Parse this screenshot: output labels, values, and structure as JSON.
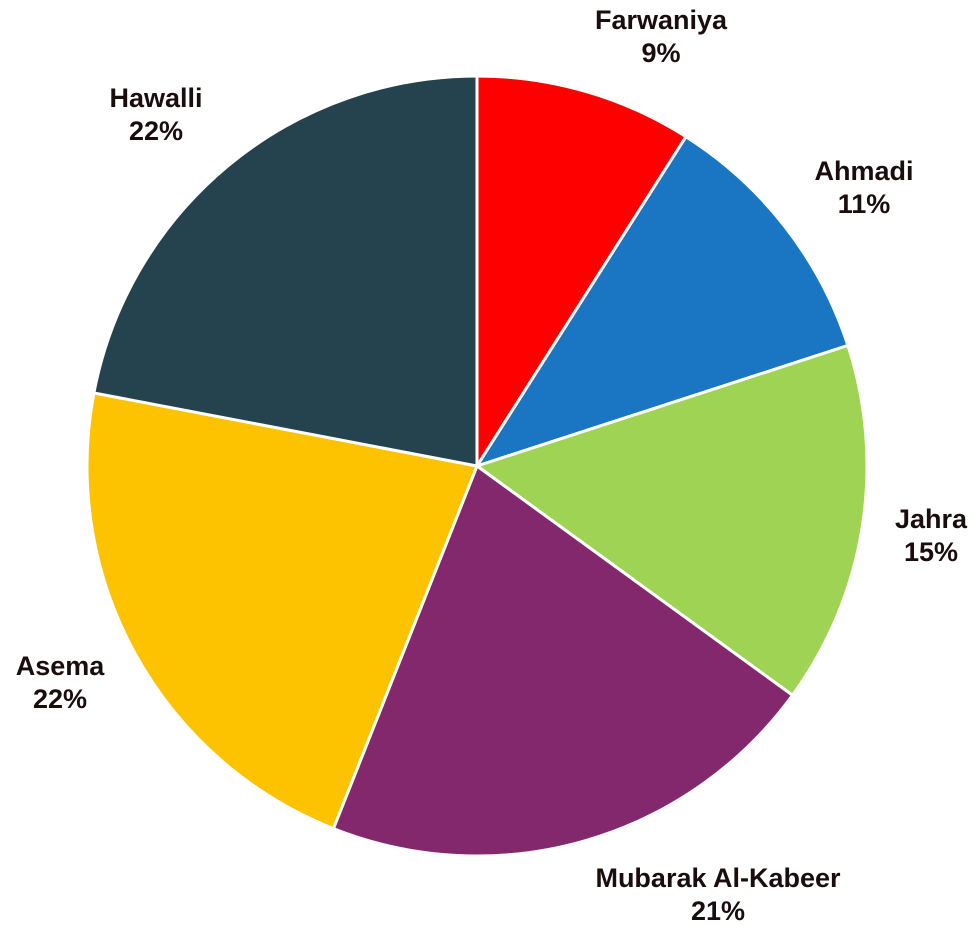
{
  "chart_data": {
    "type": "pie",
    "categories": [
      "Farwaniya",
      "Ahmadi",
      "Jahra",
      "Mubarak Al-Kabeer",
      "Asema",
      "Hawalli"
    ],
    "values": [
      9,
      11,
      15,
      21,
      22,
      22
    ],
    "value_labels": [
      "9%",
      "11%",
      "15%",
      "21%",
      "22%",
      "22%"
    ],
    "colors": [
      "#ff0000",
      "#1a75c2",
      "#9ed354",
      "#84286d",
      "#fdc200",
      "#25424f"
    ]
  }
}
